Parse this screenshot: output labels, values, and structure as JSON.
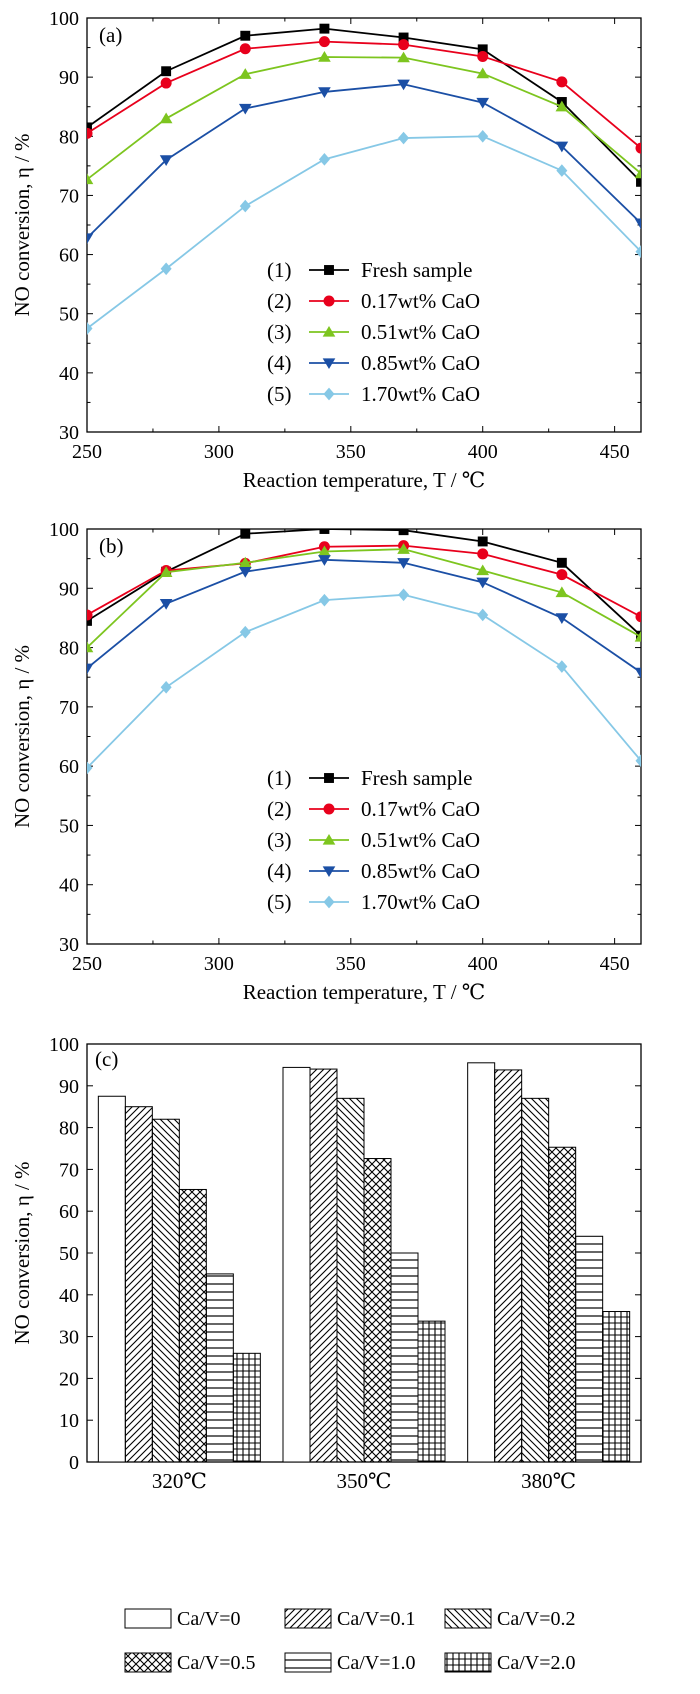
{
  "chart_data": [
    {
      "type": "line",
      "panel_label": "(a)",
      "xlabel": "Reaction temperature, T / ℃",
      "ylabel": "NO conversion, η / %",
      "xlim": [
        250,
        460
      ],
      "ylim": [
        30,
        100
      ],
      "x_ticks": [
        250,
        300,
        350,
        400,
        450
      ],
      "y_ticks": [
        30,
        40,
        50,
        60,
        70,
        80,
        90,
        100
      ],
      "legend_position": "lower-center",
      "x": [
        250,
        280,
        310,
        340,
        370,
        400,
        430,
        460
      ],
      "series": [
        {
          "index": "(1)",
          "name": "Fresh sample",
          "marker": "square",
          "color": "#000000",
          "values": [
            81.5,
            91,
            97,
            98.2,
            96.7,
            94.7,
            85.8,
            72.3
          ]
        },
        {
          "index": "(2)",
          "name": "0.17wt% CaO",
          "marker": "circle",
          "color": "#e8001c",
          "values": [
            80.5,
            89,
            94.8,
            96,
            95.5,
            93.5,
            89.2,
            78
          ]
        },
        {
          "index": "(3)",
          "name": "0.51wt% CaO",
          "marker": "triangle-up",
          "color": "#7dc51f",
          "values": [
            72.7,
            83,
            90.5,
            93.4,
            93.3,
            90.6,
            85,
            73.7
          ]
        },
        {
          "index": "(4)",
          "name": "0.85wt% CaO",
          "marker": "triangle-down",
          "color": "#1b4fa5",
          "values": [
            62.8,
            76,
            84.7,
            87.5,
            88.8,
            85.7,
            78.3,
            65.3
          ]
        },
        {
          "index": "(5)",
          "name": "1.70wt% CaO",
          "marker": "diamond",
          "color": "#86c8e6",
          "values": [
            47.5,
            57.6,
            68.2,
            76.1,
            79.7,
            80,
            74.2,
            60.5
          ]
        }
      ]
    },
    {
      "type": "line",
      "panel_label": "(b)",
      "xlabel": "Reaction temperature, T / ℃",
      "ylabel": "NO conversion, η / %",
      "xlim": [
        250,
        460
      ],
      "ylim": [
        30,
        100
      ],
      "x_ticks": [
        250,
        300,
        350,
        400,
        450
      ],
      "y_ticks": [
        30,
        40,
        50,
        60,
        70,
        80,
        90,
        100
      ],
      "legend_position": "lower-center",
      "x": [
        250,
        280,
        310,
        340,
        370,
        400,
        430,
        460
      ],
      "series": [
        {
          "index": "(1)",
          "name": "Fresh sample",
          "marker": "square",
          "color": "#000000",
          "values": [
            84.5,
            92.8,
            99.2,
            100,
            99.8,
            97.9,
            94.3,
            82
          ]
        },
        {
          "index": "(2)",
          "name": "0.17wt% CaO",
          "marker": "circle",
          "color": "#e8001c",
          "values": [
            85.5,
            93,
            94.2,
            97,
            97.2,
            95.8,
            92.3,
            85.2
          ]
        },
        {
          "index": "(3)",
          "name": "0.51wt% CaO",
          "marker": "triangle-up",
          "color": "#7dc51f",
          "values": [
            80,
            92.7,
            94.3,
            96.2,
            96.6,
            93,
            89.3,
            81.8
          ]
        },
        {
          "index": "(4)",
          "name": "0.85wt% CaO",
          "marker": "triangle-down",
          "color": "#1b4fa5",
          "values": [
            76.5,
            87.4,
            92.8,
            94.8,
            94.3,
            91,
            85,
            75.8
          ]
        },
        {
          "index": "(5)",
          "name": "1.70wt% CaO",
          "marker": "diamond",
          "color": "#86c8e6",
          "values": [
            59.7,
            73.3,
            82.6,
            88,
            88.9,
            85.5,
            76.8,
            60.9
          ]
        }
      ]
    },
    {
      "type": "bar",
      "panel_label": "(c)",
      "ylabel": "NO conversion, η / %",
      "ylim": [
        0,
        100
      ],
      "y_ticks": [
        0,
        10,
        20,
        30,
        40,
        50,
        60,
        70,
        80,
        90,
        100
      ],
      "categories": [
        "320℃",
        "350℃",
        "380℃"
      ],
      "legend_position": "bottom",
      "series": [
        {
          "name": "Ca/V=0",
          "pattern": "blank",
          "values": [
            87.5,
            94.4,
            95.5
          ]
        },
        {
          "name": "Ca/V=0.1",
          "pattern": "hatch-forward",
          "values": [
            85,
            94,
            93.8
          ]
        },
        {
          "name": "Ca/V=0.2",
          "pattern": "hatch-back",
          "values": [
            82,
            87,
            87
          ]
        },
        {
          "name": "Ca/V=0.5",
          "pattern": "crosshatch",
          "values": [
            65.2,
            72.6,
            75.3
          ]
        },
        {
          "name": "Ca/V=1.0",
          "pattern": "horizontal",
          "values": [
            45,
            50,
            54
          ]
        },
        {
          "name": "Ca/V=2.0",
          "pattern": "grid",
          "values": [
            26,
            33.7,
            36
          ]
        }
      ]
    }
  ]
}
